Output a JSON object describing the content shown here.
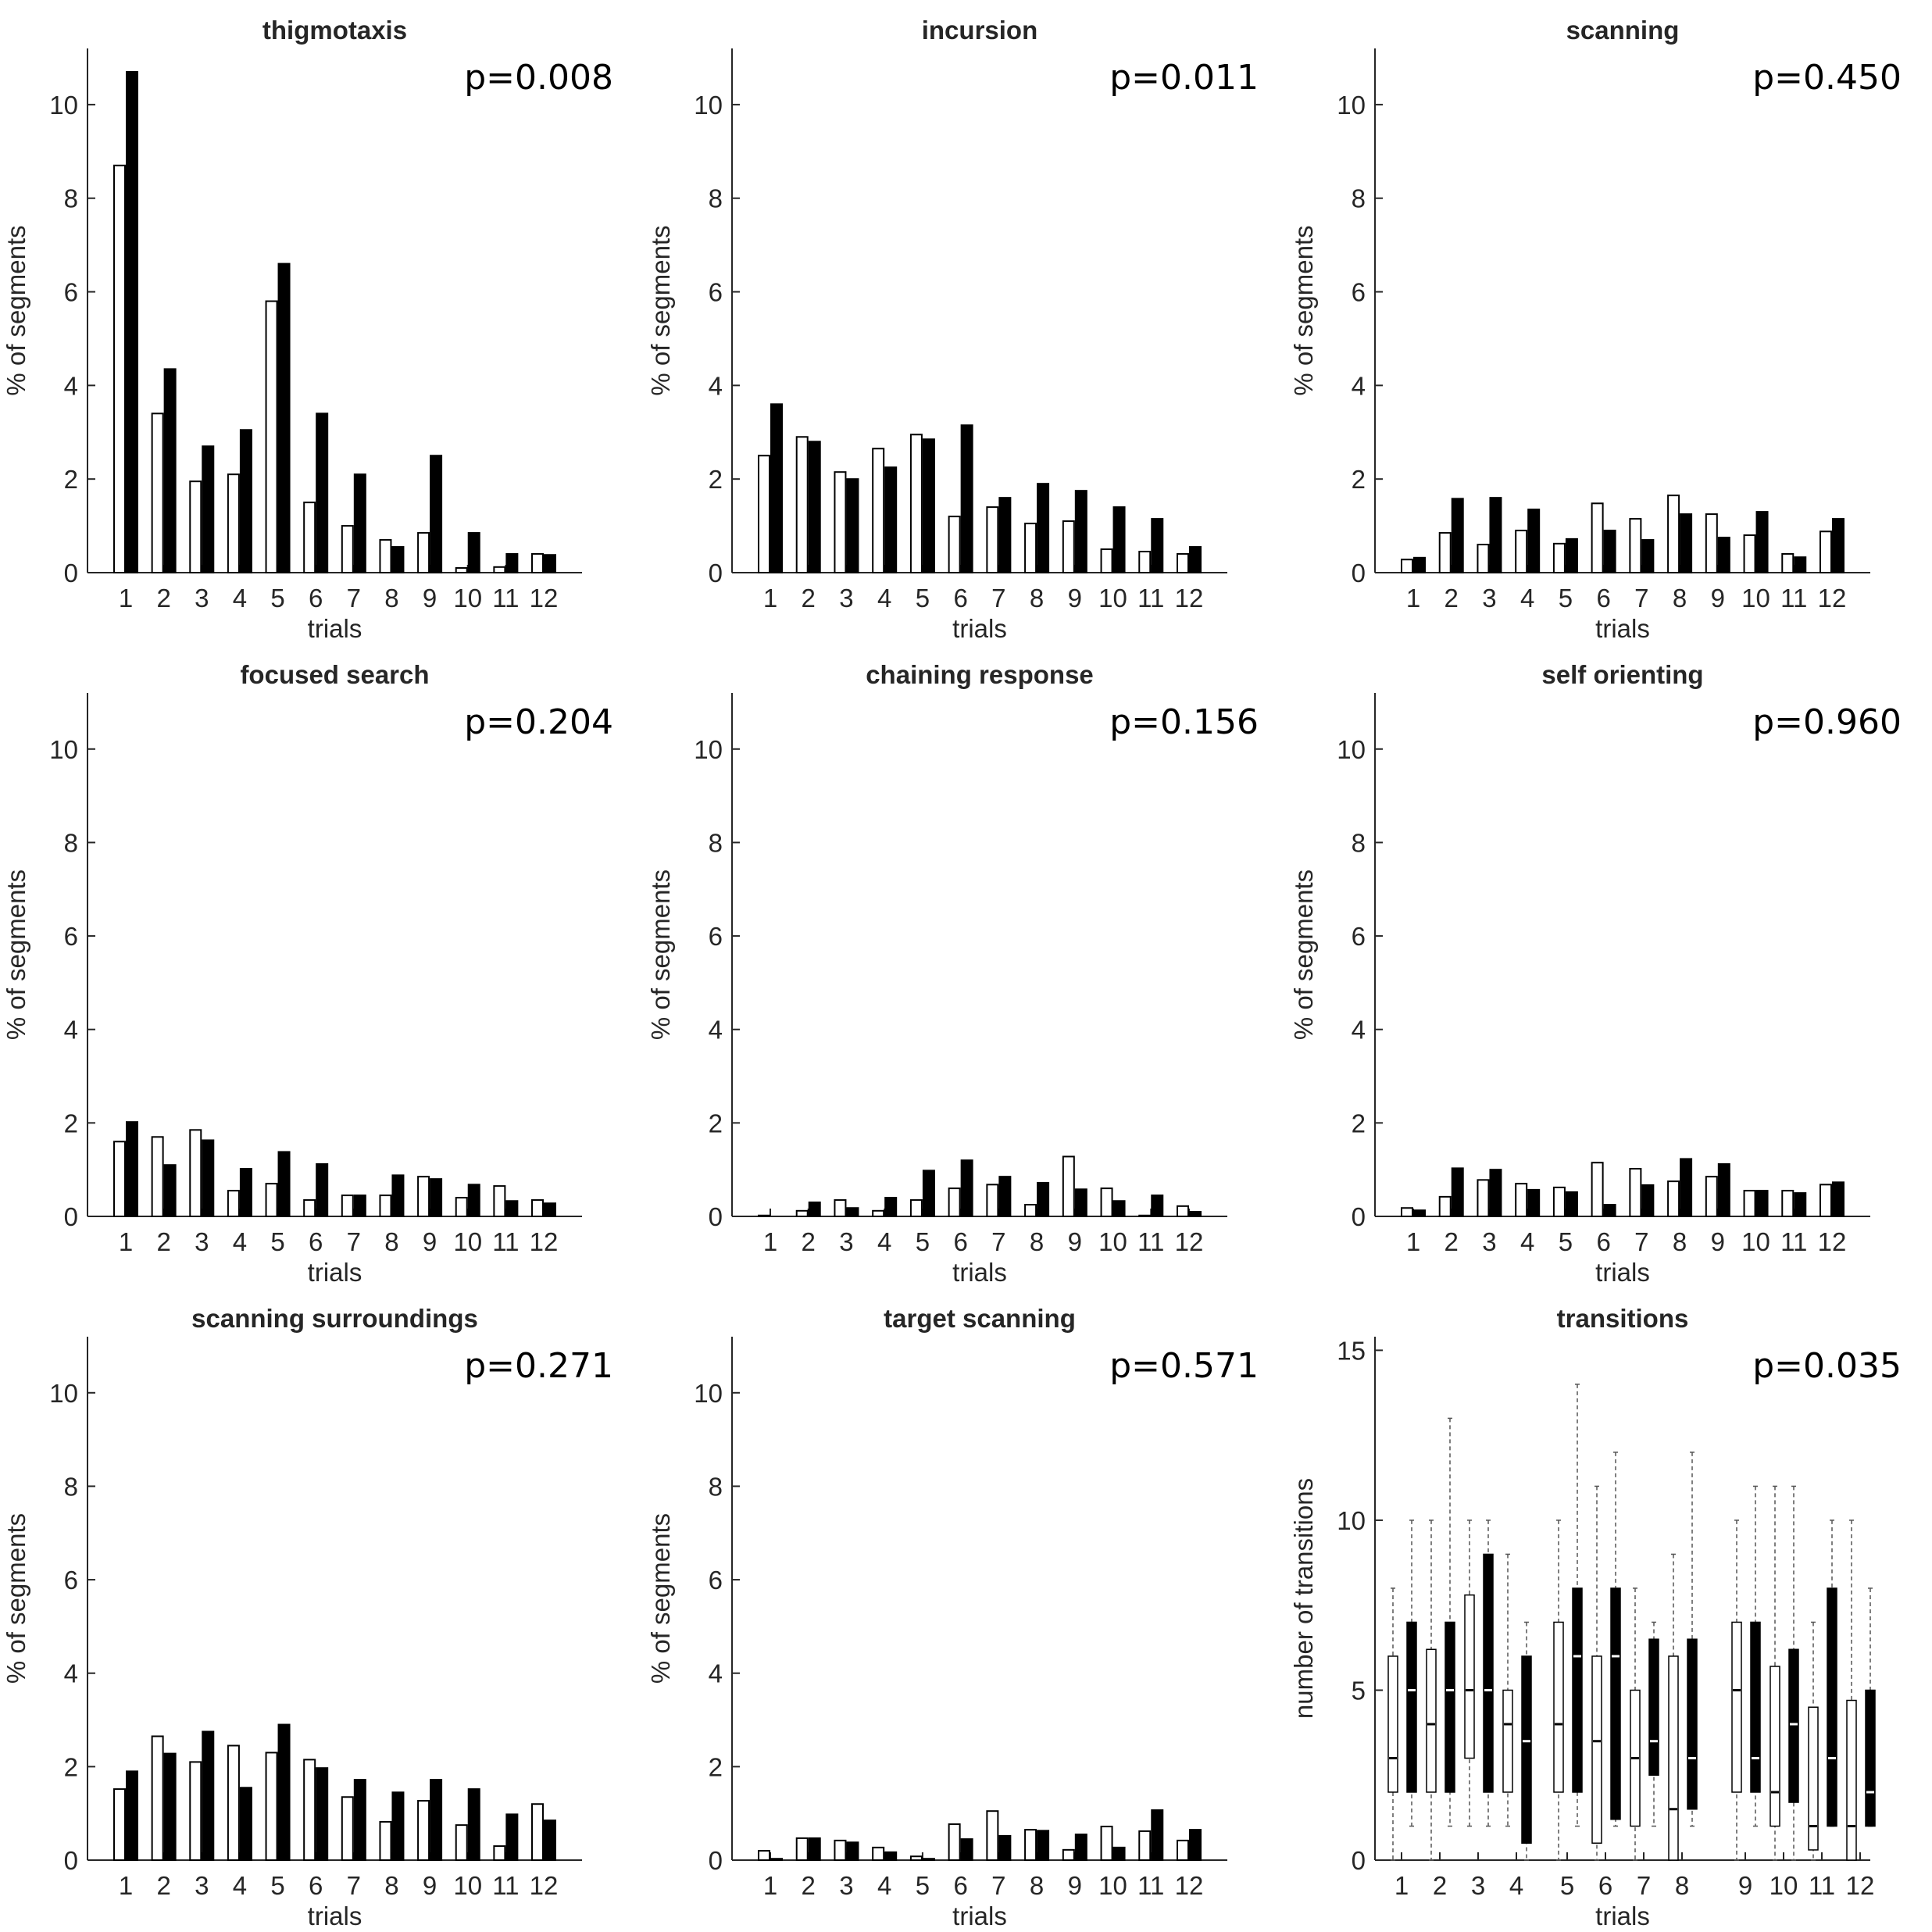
{
  "colors": {
    "white_bar": "#ffffff",
    "black_bar": "#000000",
    "axis": "#262626"
  },
  "chart_data": [
    {
      "type": "bar",
      "title": "thigmotaxis",
      "p_value": "p=0.008",
      "xlabel": "trials",
      "ylabel": "% of segments",
      "categories": [
        "1",
        "2",
        "3",
        "4",
        "5",
        "6",
        "7",
        "8",
        "9",
        "10",
        "11",
        "12"
      ],
      "ylim": [
        0,
        11.2
      ],
      "yticks": [
        "0",
        "2",
        "4",
        "6",
        "8",
        "10"
      ],
      "series": [
        {
          "name": "white",
          "values": [
            8.7,
            3.4,
            1.95,
            2.1,
            5.8,
            1.5,
            1.0,
            0.7,
            0.85,
            0.1,
            0.12,
            0.4
          ]
        },
        {
          "name": "black",
          "values": [
            10.7,
            4.35,
            2.7,
            3.05,
            6.6,
            3.4,
            2.1,
            0.55,
            2.5,
            0.85,
            0.4,
            0.38
          ]
        }
      ]
    },
    {
      "type": "bar",
      "title": "incursion",
      "p_value": "p=0.011",
      "xlabel": "trials",
      "ylabel": "% of segments",
      "categories": [
        "1",
        "2",
        "3",
        "4",
        "5",
        "6",
        "7",
        "8",
        "9",
        "10",
        "11",
        "12"
      ],
      "ylim": [
        0,
        11.2
      ],
      "yticks": [
        "0",
        "2",
        "4",
        "6",
        "8",
        "10"
      ],
      "series": [
        {
          "name": "white",
          "values": [
            2.5,
            2.9,
            2.15,
            2.65,
            2.95,
            1.2,
            1.4,
            1.05,
            1.1,
            0.5,
            0.45,
            0.4
          ]
        },
        {
          "name": "black",
          "values": [
            3.6,
            2.8,
            2.0,
            2.25,
            2.85,
            3.15,
            1.6,
            1.9,
            1.75,
            1.4,
            1.15,
            0.55
          ]
        }
      ]
    },
    {
      "type": "bar",
      "title": "scanning",
      "p_value": "p=0.450",
      "xlabel": "trials",
      "ylabel": "% of segments",
      "categories": [
        "1",
        "2",
        "3",
        "4",
        "5",
        "6",
        "7",
        "8",
        "9",
        "10",
        "11",
        "12"
      ],
      "ylim": [
        0,
        11.2
      ],
      "yticks": [
        "0",
        "2",
        "4",
        "6",
        "8",
        "10"
      ],
      "series": [
        {
          "name": "white",
          "values": [
            0.28,
            0.85,
            0.6,
            0.9,
            0.62,
            1.48,
            1.15,
            1.65,
            1.25,
            0.8,
            0.4,
            0.88
          ]
        },
        {
          "name": "black",
          "values": [
            0.32,
            1.58,
            1.6,
            1.35,
            0.72,
            0.9,
            0.7,
            1.25,
            0.75,
            1.3,
            0.33,
            1.15
          ]
        }
      ]
    },
    {
      "type": "bar",
      "title": "focused search",
      "p_value": "p=0.204",
      "xlabel": "trials",
      "ylabel": "% of segments",
      "categories": [
        "1",
        "2",
        "3",
        "4",
        "5",
        "6",
        "7",
        "8",
        "9",
        "10",
        "11",
        "12"
      ],
      "ylim": [
        0,
        11.2
      ],
      "yticks": [
        "0",
        "2",
        "4",
        "6",
        "8",
        "10"
      ],
      "series": [
        {
          "name": "white",
          "values": [
            1.6,
            1.7,
            1.85,
            0.55,
            0.7,
            0.35,
            0.45,
            0.45,
            0.85,
            0.4,
            0.65,
            0.35
          ]
        },
        {
          "name": "black",
          "values": [
            2.02,
            1.1,
            1.63,
            1.02,
            1.38,
            1.12,
            0.45,
            0.88,
            0.8,
            0.68,
            0.33,
            0.28
          ]
        }
      ]
    },
    {
      "type": "bar",
      "title": "chaining response",
      "p_value": "p=0.156",
      "xlabel": "trials",
      "ylabel": "% of segments",
      "categories": [
        "1",
        "2",
        "3",
        "4",
        "5",
        "6",
        "7",
        "8",
        "9",
        "10",
        "11",
        "12"
      ],
      "ylim": [
        0,
        11.2
      ],
      "yticks": [
        "0",
        "2",
        "4",
        "6",
        "8",
        "10"
      ],
      "series": [
        {
          "name": "white",
          "values": [
            0.02,
            0.12,
            0.35,
            0.12,
            0.35,
            0.6,
            0.68,
            0.25,
            1.28,
            0.6,
            0.02,
            0.22
          ]
        },
        {
          "name": "black",
          "values": [
            0.0,
            0.3,
            0.18,
            0.4,
            0.98,
            1.2,
            0.85,
            0.72,
            0.58,
            0.33,
            0.45,
            0.1
          ]
        }
      ]
    },
    {
      "type": "bar",
      "title": "self orienting",
      "p_value": "p=0.960",
      "xlabel": "trials",
      "ylabel": "% of segments",
      "categories": [
        "1",
        "2",
        "3",
        "4",
        "5",
        "6",
        "7",
        "8",
        "9",
        "10",
        "11",
        "12"
      ],
      "ylim": [
        0,
        11.2
      ],
      "yticks": [
        "0",
        "2",
        "4",
        "6",
        "8",
        "10"
      ],
      "series": [
        {
          "name": "white",
          "values": [
            0.18,
            0.42,
            0.78,
            0.7,
            0.62,
            1.15,
            1.02,
            0.75,
            0.85,
            0.55,
            0.55,
            0.68
          ]
        },
        {
          "name": "black",
          "values": [
            0.13,
            1.03,
            1.0,
            0.57,
            0.52,
            0.25,
            0.67,
            1.23,
            1.12,
            0.55,
            0.5,
            0.73
          ]
        }
      ]
    },
    {
      "type": "bar",
      "title": "scanning surroundings",
      "p_value": "p=0.271",
      "xlabel": "trials",
      "ylabel": "% of segments",
      "categories": [
        "1",
        "2",
        "3",
        "4",
        "5",
        "6",
        "7",
        "8",
        "9",
        "10",
        "11",
        "12"
      ],
      "ylim": [
        0,
        11.2
      ],
      "yticks": [
        "0",
        "2",
        "4",
        "6",
        "8",
        "10"
      ],
      "series": [
        {
          "name": "white",
          "values": [
            1.52,
            2.65,
            2.1,
            2.45,
            2.3,
            2.15,
            1.35,
            0.82,
            1.27,
            0.75,
            0.3,
            1.2
          ]
        },
        {
          "name": "black",
          "values": [
            1.9,
            2.28,
            2.75,
            1.55,
            2.9,
            1.97,
            1.72,
            1.45,
            1.72,
            1.52,
            0.98,
            0.85
          ]
        }
      ]
    },
    {
      "type": "bar",
      "title": "target scanning",
      "p_value": "p=0.571",
      "xlabel": "trials",
      "ylabel": "% of segments",
      "categories": [
        "1",
        "2",
        "3",
        "4",
        "5",
        "6",
        "7",
        "8",
        "9",
        "10",
        "11",
        "12"
      ],
      "ylim": [
        0,
        11.2
      ],
      "yticks": [
        "0",
        "2",
        "4",
        "6",
        "8",
        "10"
      ],
      "series": [
        {
          "name": "white",
          "values": [
            0.2,
            0.47,
            0.42,
            0.27,
            0.08,
            0.77,
            1.05,
            0.65,
            0.22,
            0.72,
            0.62,
            0.42
          ]
        },
        {
          "name": "black",
          "values": [
            0.03,
            0.47,
            0.38,
            0.17,
            0.03,
            0.45,
            0.52,
            0.63,
            0.55,
            0.27,
            1.07,
            0.65
          ]
        }
      ]
    },
    {
      "type": "box",
      "title": "transitions",
      "p_value": "p=0.035",
      "xlabel": "trials",
      "ylabel": "number of transitions",
      "categories": [
        "1",
        "2",
        "3",
        "4",
        "5",
        "6",
        "7",
        "8",
        "9",
        "10",
        "11",
        "12"
      ],
      "ylim": [
        0,
        15.4
      ],
      "yticks": [
        "0",
        "5",
        "10",
        "15"
      ],
      "series": [
        {
          "name": "white",
          "boxes": [
            {
              "min": 0,
              "q1": 2,
              "median": 3,
              "q3": 6,
              "max": 8
            },
            {
              "min": 0,
              "q1": 2,
              "median": 4,
              "q3": 6.2,
              "max": 10
            },
            {
              "min": 1,
              "q1": 3,
              "median": 5,
              "q3": 7.8,
              "max": 10
            },
            {
              "min": 1,
              "q1": 2,
              "median": 4,
              "q3": 5,
              "max": 9
            },
            {
              "min": 0,
              "q1": 2,
              "median": 4,
              "q3": 7,
              "max": 10
            },
            {
              "min": 0,
              "q1": 0.5,
              "median": 3.5,
              "q3": 6,
              "max": 11
            },
            {
              "min": 0,
              "q1": 1,
              "median": 3,
              "q3": 5,
              "max": 8
            },
            {
              "min": 0,
              "q1": 0,
              "median": 1.5,
              "q3": 6,
              "max": 9
            },
            {
              "min": 0,
              "q1": 2,
              "median": 5,
              "q3": 7,
              "max": 10
            },
            {
              "min": 0,
              "q1": 1,
              "median": 2,
              "q3": 5.7,
              "max": 11
            },
            {
              "min": 0,
              "q1": 0.3,
              "median": 1,
              "q3": 4.5,
              "max": 7
            },
            {
              "min": 0,
              "q1": 0,
              "median": 1,
              "q3": 4.7,
              "max": 10
            }
          ]
        },
        {
          "name": "black",
          "boxes": [
            {
              "min": 1,
              "q1": 2,
              "median": 5,
              "q3": 7,
              "max": 10
            },
            {
              "min": 1,
              "q1": 2,
              "median": 5,
              "q3": 7,
              "max": 13
            },
            {
              "min": 1,
              "q1": 2,
              "median": 5,
              "q3": 9,
              "max": 10
            },
            {
              "min": 0,
              "q1": 0.5,
              "median": 3.5,
              "q3": 6,
              "max": 7
            },
            {
              "min": 1,
              "q1": 2,
              "median": 6,
              "q3": 8,
              "max": 14
            },
            {
              "min": 1,
              "q1": 1.2,
              "median": 6,
              "q3": 8,
              "max": 12
            },
            {
              "min": 1,
              "q1": 2.5,
              "median": 3.5,
              "q3": 6.5,
              "max": 7
            },
            {
              "min": 1,
              "q1": 1.5,
              "median": 3,
              "q3": 6.5,
              "max": 12
            },
            {
              "min": 1,
              "q1": 2,
              "median": 3,
              "q3": 7,
              "max": 11
            },
            {
              "min": 0,
              "q1": 1.7,
              "median": 4,
              "q3": 6.2,
              "max": 11
            },
            {
              "min": 1,
              "q1": 1,
              "median": 3,
              "q3": 8,
              "max": 10
            },
            {
              "min": 1,
              "q1": 1,
              "median": 2,
              "q3": 5,
              "max": 8
            }
          ]
        }
      ]
    }
  ]
}
